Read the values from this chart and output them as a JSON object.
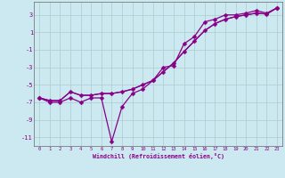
{
  "xlabel": "Windchill (Refroidissement éolien,°C)",
  "x_values": [
    0,
    1,
    2,
    3,
    4,
    5,
    6,
    7,
    8,
    9,
    10,
    11,
    12,
    13,
    14,
    15,
    16,
    17,
    18,
    19,
    20,
    21,
    22,
    23
  ],
  "line1_y": [
    -6.5,
    -7.0,
    -7.0,
    -6.5,
    -7.0,
    -6.5,
    -6.5,
    -11.5,
    -7.5,
    -6.0,
    -5.5,
    -4.5,
    -3.0,
    -2.8,
    -0.3,
    0.5,
    2.2,
    2.5,
    3.0,
    3.0,
    3.2,
    3.5,
    3.2,
    3.8
  ],
  "line2_y": [
    -6.5,
    -6.8,
    -6.8,
    -5.8,
    -6.2,
    -6.2,
    -6.0,
    -6.0,
    -5.8,
    -5.5,
    -5.0,
    -4.5,
    -3.5,
    -2.5,
    -1.2,
    0.0,
    1.2,
    2.0,
    2.5,
    2.8,
    3.0,
    3.2,
    3.1,
    3.8
  ],
  "line3_y": [
    -6.5,
    -6.8,
    -6.8,
    -5.8,
    -6.2,
    -6.2,
    -6.0,
    -6.0,
    -5.8,
    -5.5,
    -5.0,
    -4.5,
    -3.5,
    -2.5,
    -1.2,
    0.0,
    1.2,
    2.0,
    2.5,
    2.8,
    3.0,
    3.2,
    3.1,
    3.8
  ],
  "ylim": [
    -12,
    4.5
  ],
  "yticks": [
    3,
    1,
    -1,
    -3,
    -5,
    -7,
    -9,
    -11
  ],
  "xticks": [
    0,
    1,
    2,
    3,
    4,
    5,
    6,
    7,
    8,
    9,
    10,
    11,
    12,
    13,
    14,
    15,
    16,
    17,
    18,
    19,
    20,
    21,
    22,
    23
  ],
  "line_color": "#880088",
  "bg_color": "#cce8f0",
  "grid_color": "#aacccc",
  "tick_color": "#880088",
  "label_color": "#880088",
  "marker": "D",
  "markersize": 2.5,
  "linewidth": 0.9
}
